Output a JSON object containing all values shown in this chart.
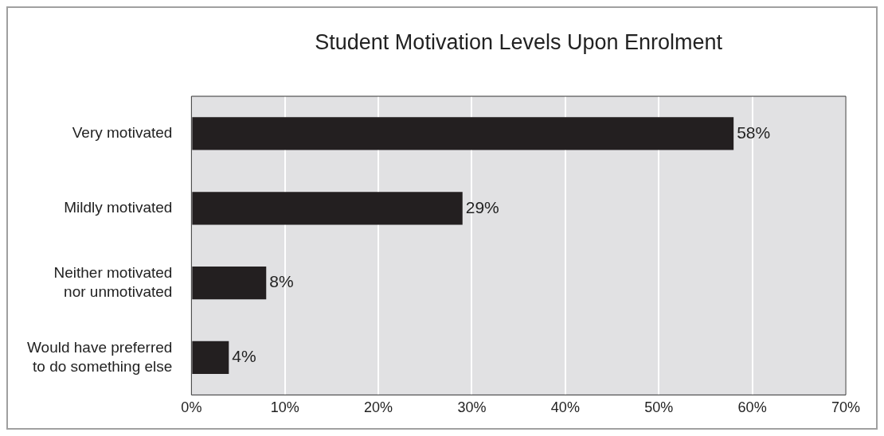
{
  "chart_data": {
    "type": "bar",
    "orientation": "horizontal",
    "title": "Student Motivation Levels Upon Enrolment",
    "categories": [
      "Very motivated",
      "Mildly motivated",
      "Neither motivated nor unmotivated",
      "Would have preferred to do something else"
    ],
    "values": [
      58,
      29,
      8,
      4
    ],
    "value_labels": [
      "58%",
      "29%",
      "8%",
      "4%"
    ],
    "color": "#231f20",
    "xlim": [
      0,
      70
    ],
    "xticks": [
      {
        "value": 0,
        "label": "0%"
      },
      {
        "value": 10,
        "label": "10%"
      },
      {
        "value": 20,
        "label": "20%"
      },
      {
        "value": 30,
        "label": "30%"
      },
      {
        "value": 40,
        "label": "40%"
      },
      {
        "value": 50,
        "label": "50%"
      },
      {
        "value": 60,
        "label": "60%"
      },
      {
        "value": 70,
        "label": "70%"
      }
    ],
    "grid": "x",
    "legend": false
  }
}
